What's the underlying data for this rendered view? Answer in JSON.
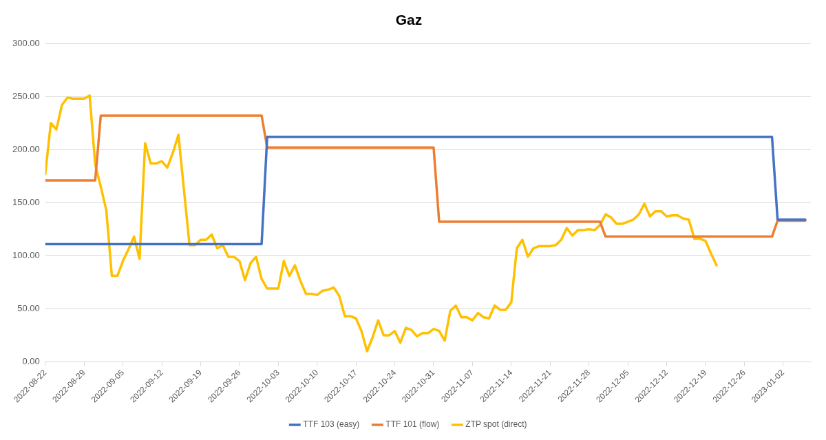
{
  "chart_data": {
    "type": "line",
    "title": "Gaz",
    "ylim": [
      0,
      300
    ],
    "yticks": [
      {
        "value": 0,
        "label": "0.00"
      },
      {
        "value": 50,
        "label": "50.00"
      },
      {
        "value": 100,
        "label": "100.00"
      },
      {
        "value": 150,
        "label": "150.00"
      },
      {
        "value": 200,
        "label": "200.00"
      },
      {
        "value": 250,
        "label": "250.00"
      },
      {
        "value": 300,
        "label": "300.00"
      }
    ],
    "xlim": [
      "2022-08-22",
      "2023-01-07"
    ],
    "xticks": [
      "2022-08-22",
      "2022-08-29",
      "2022-09-05",
      "2022-09-12",
      "2022-09-19",
      "2022-09-26",
      "2022-10-03",
      "2022-10-10",
      "2022-10-17",
      "2022-10-24",
      "2022-10-31",
      "2022-11-07",
      "2022-11-14",
      "2022-11-21",
      "2022-11-28",
      "2022-12-05",
      "2022-12-12",
      "2022-12-19",
      "2022-12-26",
      "2023-01-02"
    ],
    "grid": "y",
    "legend": "bottom",
    "marker": "none",
    "line_style": "solid",
    "series": [
      {
        "name": "TTF 103 (easy)",
        "color": "#4472c4",
        "x": [
          "2022-08-22",
          "2022-09-30",
          "2022-10-01",
          "2022-12-31",
          "2023-01-01",
          "2023-01-06"
        ],
        "values": [
          111,
          111,
          212,
          212,
          134,
          134
        ]
      },
      {
        "name": "TTF 101 (flow)",
        "color": "#ed7d31",
        "x": [
          "2022-08-22",
          "2022-08-31",
          "2022-09-01",
          "2022-09-30",
          "2022-10-01",
          "2022-10-31",
          "2022-11-01",
          "2022-11-30",
          "2022-12-01",
          "2022-12-31",
          "2023-01-01",
          "2023-01-06"
        ],
        "values": [
          171,
          171,
          232,
          232,
          202,
          202,
          132,
          132,
          118,
          118,
          133,
          133
        ]
      },
      {
        "name": "ZTP spot (direct)",
        "color": "#ffc000",
        "x": [
          "2022-08-22",
          "2022-08-23",
          "2022-08-24",
          "2022-08-25",
          "2022-08-26",
          "2022-08-27",
          "2022-08-28",
          "2022-08-29",
          "2022-08-30",
          "2022-08-31",
          "2022-09-01",
          "2022-09-02",
          "2022-09-03",
          "2022-09-04",
          "2022-09-05",
          "2022-09-06",
          "2022-09-07",
          "2022-09-08",
          "2022-09-09",
          "2022-09-10",
          "2022-09-11",
          "2022-09-12",
          "2022-09-13",
          "2022-09-14",
          "2022-09-15",
          "2022-09-16",
          "2022-09-17",
          "2022-09-18",
          "2022-09-19",
          "2022-09-20",
          "2022-09-21",
          "2022-09-22",
          "2022-09-23",
          "2022-09-24",
          "2022-09-25",
          "2022-09-26",
          "2022-09-27",
          "2022-09-28",
          "2022-09-29",
          "2022-09-30",
          "2022-10-01",
          "2022-10-02",
          "2022-10-03",
          "2022-10-04",
          "2022-10-05",
          "2022-10-06",
          "2022-10-07",
          "2022-10-08",
          "2022-10-09",
          "2022-10-10",
          "2022-10-11",
          "2022-10-12",
          "2022-10-13",
          "2022-10-14",
          "2022-10-15",
          "2022-10-16",
          "2022-10-17",
          "2022-10-18",
          "2022-10-19",
          "2022-10-20",
          "2022-10-21",
          "2022-10-22",
          "2022-10-23",
          "2022-10-24",
          "2022-10-25",
          "2022-10-26",
          "2022-10-27",
          "2022-10-28",
          "2022-10-29",
          "2022-10-30",
          "2022-10-31",
          "2022-11-01",
          "2022-11-02",
          "2022-11-03",
          "2022-11-04",
          "2022-11-05",
          "2022-11-06",
          "2022-11-07",
          "2022-11-08",
          "2022-11-09",
          "2022-11-10",
          "2022-11-11",
          "2022-11-12",
          "2022-11-13",
          "2022-11-14",
          "2022-11-15",
          "2022-11-16",
          "2022-11-17",
          "2022-11-18",
          "2022-11-19",
          "2022-11-20",
          "2022-11-21",
          "2022-11-22",
          "2022-11-23",
          "2022-11-24",
          "2022-11-25",
          "2022-11-26",
          "2022-11-27",
          "2022-11-28",
          "2022-11-29",
          "2022-11-30",
          "2022-12-01",
          "2022-12-02",
          "2022-12-03",
          "2022-12-04",
          "2022-12-05",
          "2022-12-06",
          "2022-12-07",
          "2022-12-08",
          "2022-12-09",
          "2022-12-10",
          "2022-12-11",
          "2022-12-12",
          "2022-12-13",
          "2022-12-14",
          "2022-12-15",
          "2022-12-16",
          "2022-12-17",
          "2022-12-18",
          "2022-12-19",
          "2022-12-20",
          "2022-12-21"
        ],
        "values": [
          177,
          225,
          219,
          242,
          249,
          248,
          248,
          248,
          251,
          186,
          165,
          143,
          81,
          81,
          95,
          106,
          118,
          97,
          206,
          187,
          187,
          189,
          183,
          197,
          214,
          162,
          110,
          110,
          115,
          115,
          120,
          107,
          110,
          99,
          99,
          95,
          77,
          93,
          99,
          78,
          69,
          69,
          69,
          95,
          81,
          91,
          76,
          64,
          64,
          63,
          67,
          68,
          70,
          62,
          43,
          43,
          41,
          29,
          10,
          23,
          39,
          25,
          25,
          29,
          18,
          32,
          30,
          24,
          27,
          27,
          31,
          29,
          20,
          48,
          53,
          42,
          42,
          39,
          46,
          42,
          41,
          53,
          49,
          49,
          56,
          107,
          115,
          99,
          107,
          109,
          109,
          109,
          110,
          115,
          126,
          119,
          124,
          124,
          125,
          124,
          129,
          139,
          136,
          130,
          130,
          132,
          134,
          139,
          149,
          137,
          142,
          142,
          137,
          138,
          138,
          135,
          134,
          116,
          116,
          114,
          102,
          91
        ]
      }
    ]
  }
}
